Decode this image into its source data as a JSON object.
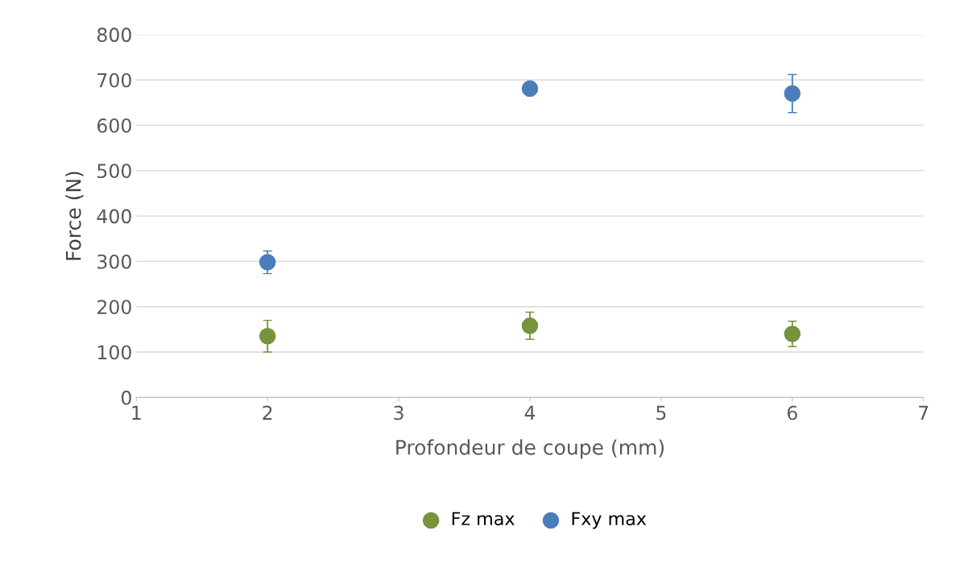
{
  "chart_data": {
    "type": "scatter",
    "xlabel": "Profondeur de coupe (mm)",
    "ylabel": "Force (N)",
    "x": [
      2,
      4,
      6
    ],
    "series": [
      {
        "name": "Fz max",
        "color": "#77933c",
        "values": [
          135,
          158,
          140
        ],
        "errors": [
          35,
          30,
          28
        ]
      },
      {
        "name": "Fxy max",
        "color": "#4a7ebb",
        "values": [
          298,
          681,
          670
        ],
        "errors": [
          25,
          10,
          42
        ]
      }
    ],
    "xlim": [
      1,
      7
    ],
    "xticks": [
      1,
      2,
      3,
      4,
      5,
      6,
      7
    ],
    "ylim": [
      0,
      800
    ],
    "yticks": [
      0,
      100,
      200,
      300,
      400,
      500,
      600,
      700,
      800
    ],
    "grid": "y",
    "legend": "bottom",
    "marker": "circle"
  }
}
